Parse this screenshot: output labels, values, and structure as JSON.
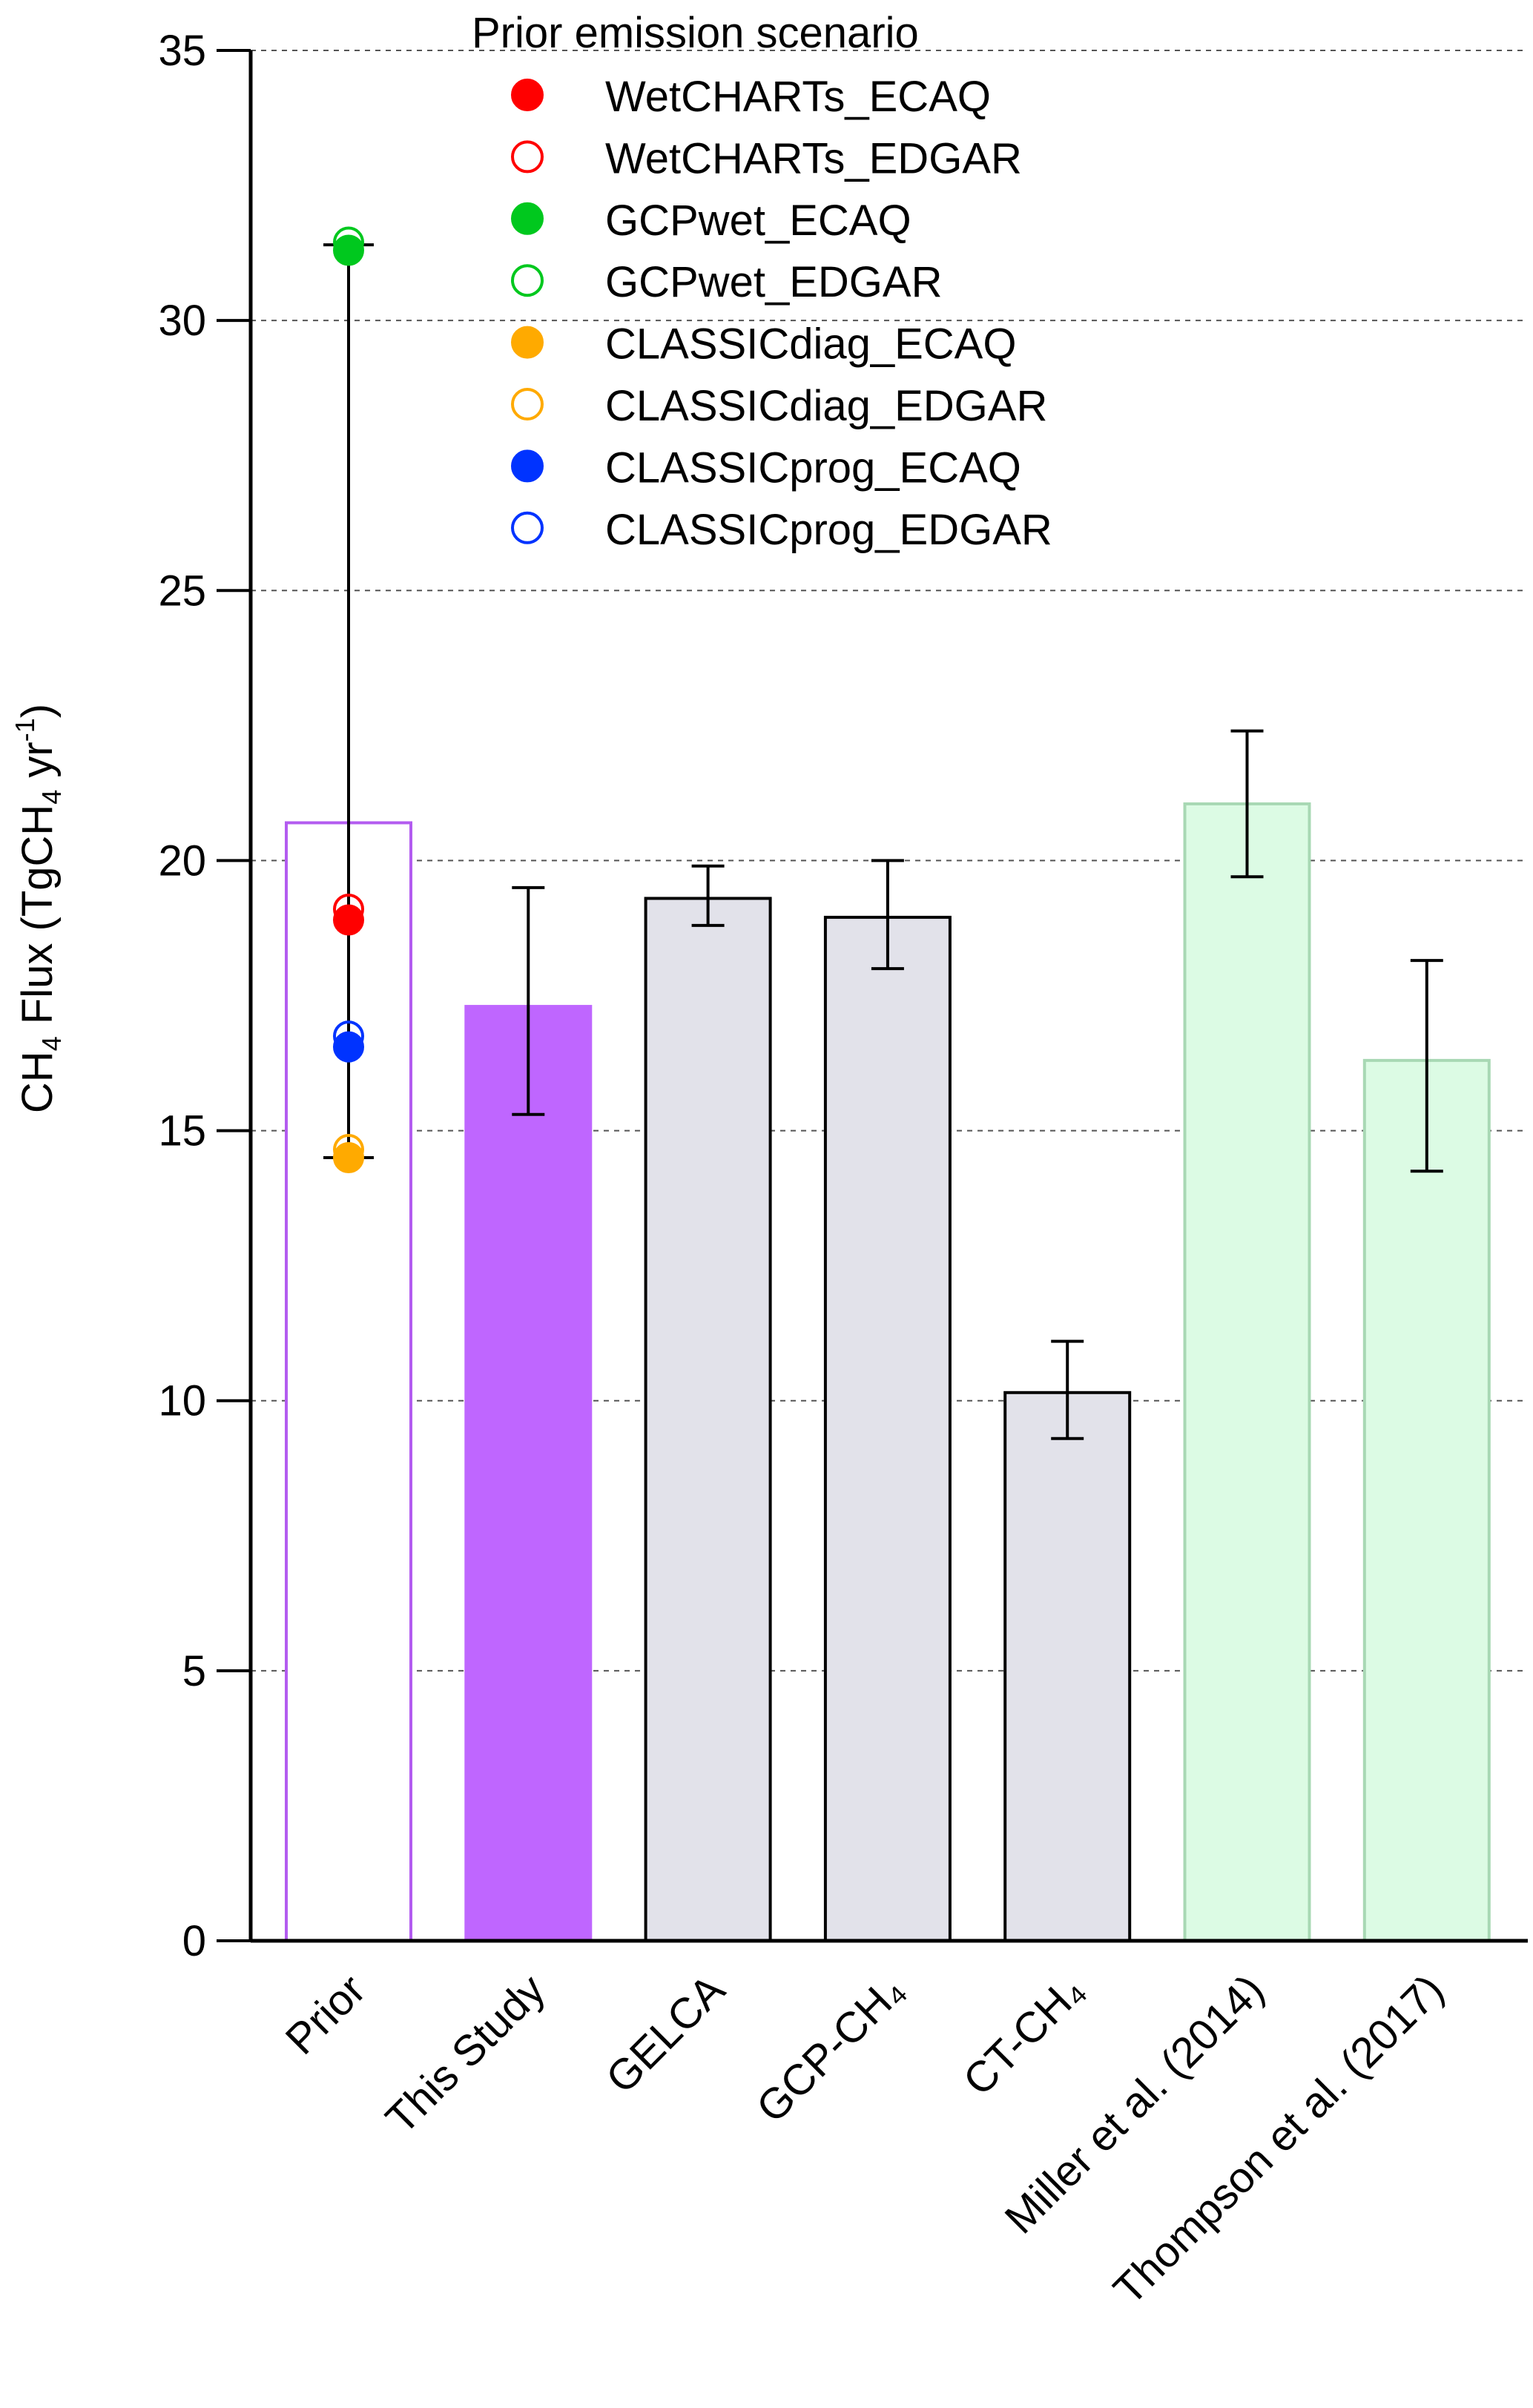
{
  "chart_data": {
    "type": "bar",
    "ylabel": "CH₄ Flux (TgCH₄ yr⁻¹)",
    "ylim": [
      0,
      35
    ],
    "yticks": [
      0,
      5,
      10,
      15,
      20,
      25,
      30,
      35
    ],
    "grid": "horizontal dashed",
    "categories": [
      "Prior",
      "This Study",
      "GELCA",
      "GCP-CH₄",
      "CT-CH₄",
      "Miller et al. (2014)",
      "Thompson et al. (2017)"
    ],
    "bars": [
      {
        "category": "Prior",
        "value": 20.7,
        "fill": "#ffffff",
        "stroke": "#b35cf0"
      },
      {
        "category": "This Study",
        "value": 17.3,
        "err_low": 15.3,
        "err_high": 19.5,
        "fill": "#bf66ff",
        "stroke": "#bf66ff"
      },
      {
        "category": "GELCA",
        "value": 19.3,
        "err_low": 18.8,
        "err_high": 19.9,
        "fill": "#e2e2ea",
        "stroke": "#000000"
      },
      {
        "category": "GCP-CH₄",
        "value": 18.95,
        "err_low": 18.0,
        "err_high": 20.0,
        "fill": "#e2e2ea",
        "stroke": "#000000"
      },
      {
        "category": "CT-CH₄",
        "value": 10.15,
        "err_low": 9.3,
        "err_high": 11.1,
        "fill": "#e2e2ea",
        "stroke": "#000000"
      },
      {
        "category": "Miller et al. (2014)",
        "value": 21.05,
        "err_low": 19.7,
        "err_high": 22.4,
        "fill": "#dcfbe4",
        "stroke": "#a8d8b4"
      },
      {
        "category": "Thompson et al. (2017)",
        "value": 16.3,
        "err_low": 14.25,
        "err_high": 18.15,
        "fill": "#dcfbe4",
        "stroke": "#a8d8b4"
      }
    ],
    "prior_range": [
      14.5,
      31.4
    ],
    "legend_title": "Prior emission scenario",
    "legend_position": "top-center",
    "scenarios": [
      {
        "name": "WetCHARTs_ECAQ",
        "value": 18.9,
        "color": "#ff0000",
        "filled": true
      },
      {
        "name": "WetCHARTs_EDGAR",
        "value": 19.1,
        "color": "#ff0000",
        "filled": false
      },
      {
        "name": "GCPwet_ECAQ",
        "value": 31.3,
        "color": "#00c81e",
        "filled": true
      },
      {
        "name": "GCPwet_EDGAR",
        "value": 31.45,
        "color": "#00c81e",
        "filled": false
      },
      {
        "name": "CLASSICdiag_ECAQ",
        "value": 14.5,
        "color": "#ffaa00",
        "filled": true
      },
      {
        "name": "CLASSICdiag_EDGAR",
        "value": 14.65,
        "color": "#ffaa00",
        "filled": false
      },
      {
        "name": "CLASSICprog_ECAQ",
        "value": 16.55,
        "color": "#0033ff",
        "filled": true
      },
      {
        "name": "CLASSICprog_EDGAR",
        "value": 16.75,
        "color": "#0033ff",
        "filled": false
      }
    ]
  }
}
